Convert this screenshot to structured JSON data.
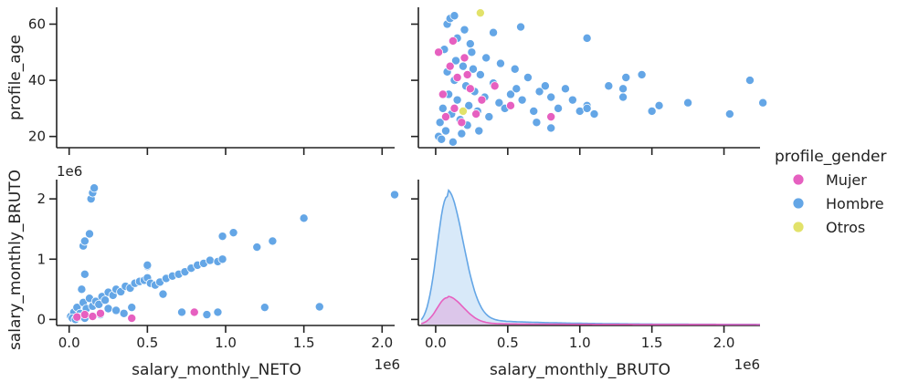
{
  "chart_data": {
    "type": "scatter",
    "title": "",
    "legend": {
      "title": "profile_gender",
      "placement": "right",
      "entries": [
        {
          "name": "Mujer",
          "color": "#e660c0"
        },
        {
          "name": "Hombre",
          "color": "#64a6e6"
        },
        {
          "name": "Otros",
          "color": "#e2e26a"
        }
      ]
    },
    "x_variables": [
      "salary_monthly_NETO",
      "salary_monthly_BRUTO"
    ],
    "y_variables": [
      "profile_age",
      "salary_monthly_BRUTO"
    ],
    "x_axes": [
      {
        "label": "salary_monthly_NETO",
        "offset_text": "1e6",
        "range": [
          -0.08,
          2.08
        ],
        "ticks": [
          0.0,
          0.5,
          1.0,
          1.5,
          2.0
        ],
        "tick_labels": [
          "0.0",
          "0.5",
          "1.0",
          "1.5",
          "2.0"
        ]
      },
      {
        "label": "salary_monthly_BRUTO",
        "offset_text": "1e6",
        "range": [
          -0.12,
          2.25
        ],
        "ticks": [
          0.0,
          0.5,
          1.0,
          1.5,
          2.0
        ],
        "tick_labels": [
          "0.0",
          "0.5",
          "1.0",
          "1.5",
          "2.0"
        ]
      }
    ],
    "y_axes": [
      {
        "label": "profile_age",
        "range": [
          16,
          66
        ],
        "ticks": [
          20,
          40,
          60
        ],
        "tick_labels": [
          "20",
          "40",
          "60"
        ]
      },
      {
        "label": "salary_monthly_BRUTO",
        "offset_text": "1e6",
        "range": [
          -0.1,
          2.32
        ],
        "ticks": [
          0,
          1,
          2
        ],
        "tick_labels": [
          "0",
          "1",
          "2"
        ]
      }
    ],
    "panels": {
      "age_vs_bruto": {
        "series": [
          {
            "name": "Hombre",
            "points": [
              [
                0.02,
                20
              ],
              [
                0.03,
                25
              ],
              [
                0.05,
                30
              ],
              [
                0.07,
                22
              ],
              [
                0.09,
                35
              ],
              [
                0.11,
                28
              ],
              [
                0.13,
                40
              ],
              [
                0.15,
                33
              ],
              [
                0.17,
                26
              ],
              [
                0.19,
                45
              ],
              [
                0.21,
                38
              ],
              [
                0.23,
                31
              ],
              [
                0.25,
                50
              ],
              [
                0.27,
                36
              ],
              [
                0.29,
                29
              ],
              [
                0.31,
                42
              ],
              [
                0.34,
                34
              ],
              [
                0.37,
                27
              ],
              [
                0.4,
                39
              ],
              [
                0.44,
                32
              ],
              [
                0.48,
                30
              ],
              [
                0.52,
                35
              ],
              [
                0.56,
                37
              ],
              [
                0.6,
                33
              ],
              [
                0.64,
                41
              ],
              [
                0.68,
                29
              ],
              [
                0.72,
                36
              ],
              [
                0.76,
                38
              ],
              [
                0.8,
                34
              ],
              [
                0.85,
                30
              ],
              [
                0.9,
                37
              ],
              [
                0.95,
                33
              ],
              [
                1.0,
                29
              ],
              [
                1.05,
                31
              ],
              [
                1.1,
                28
              ],
              [
                1.2,
                38
              ],
              [
                1.32,
                41
              ],
              [
                1.43,
                42
              ],
              [
                1.3,
                34
              ],
              [
                1.05,
                30
              ],
              [
                0.4,
                57
              ],
              [
                0.59,
                59
              ],
              [
                0.08,
                60
              ],
              [
                0.1,
                62
              ],
              [
                0.13,
                63
              ],
              [
                0.2,
                58
              ],
              [
                0.15,
                55
              ],
              [
                0.06,
                51
              ],
              [
                0.24,
                53
              ],
              [
                0.35,
                48
              ],
              [
                0.45,
                46
              ],
              [
                0.55,
                44
              ],
              [
                1.05,
                55
              ],
              [
                0.7,
                25
              ],
              [
                0.8,
                23
              ],
              [
                1.3,
                37
              ],
              [
                1.5,
                29
              ],
              [
                1.55,
                31
              ],
              [
                1.75,
                32
              ],
              [
                2.04,
                28
              ],
              [
                2.18,
                40
              ],
              [
                2.27,
                32
              ],
              [
                0.12,
                18
              ],
              [
                0.04,
                19
              ],
              [
                0.18,
                21
              ],
              [
                0.3,
                22
              ],
              [
                0.22,
                24
              ],
              [
                0.08,
                43
              ],
              [
                0.14,
                47
              ],
              [
                0.26,
                44
              ]
            ]
          },
          {
            "name": "Mujer",
            "points": [
              [
                0.02,
                50
              ],
              [
                0.05,
                35
              ],
              [
                0.07,
                27
              ],
              [
                0.1,
                45
              ],
              [
                0.13,
                30
              ],
              [
                0.15,
                41
              ],
              [
                0.18,
                25
              ],
              [
                0.2,
                48
              ],
              [
                0.24,
                37
              ],
              [
                0.28,
                28
              ],
              [
                0.32,
                33
              ],
              [
                0.41,
                38
              ],
              [
                0.52,
                31
              ],
              [
                0.8,
                27
              ],
              [
                0.12,
                54
              ],
              [
                0.22,
                42
              ]
            ]
          },
          {
            "name": "Otros",
            "points": [
              [
                0.31,
                64
              ],
              [
                0.19,
                29
              ]
            ]
          }
        ]
      },
      "bruto_vs_neto": {
        "series": [
          {
            "name": "Hombre",
            "points": [
              [
                0.01,
                0.05
              ],
              [
                0.03,
                0.12
              ],
              [
                0.05,
                0.2
              ],
              [
                0.07,
                0.1
              ],
              [
                0.09,
                0.28
              ],
              [
                0.11,
                0.18
              ],
              [
                0.13,
                0.35
              ],
              [
                0.15,
                0.22
              ],
              [
                0.17,
                0.3
              ],
              [
                0.19,
                0.25
              ],
              [
                0.21,
                0.38
              ],
              [
                0.23,
                0.32
              ],
              [
                0.25,
                0.45
              ],
              [
                0.28,
                0.4
              ],
              [
                0.3,
                0.5
              ],
              [
                0.33,
                0.46
              ],
              [
                0.36,
                0.55
              ],
              [
                0.39,
                0.52
              ],
              [
                0.42,
                0.6
              ],
              [
                0.45,
                0.63
              ],
              [
                0.48,
                0.65
              ],
              [
                0.5,
                0.69
              ],
              [
                0.52,
                0.6
              ],
              [
                0.55,
                0.57
              ],
              [
                0.58,
                0.62
              ],
              [
                0.62,
                0.68
              ],
              [
                0.66,
                0.72
              ],
              [
                0.7,
                0.75
              ],
              [
                0.74,
                0.79
              ],
              [
                0.78,
                0.85
              ],
              [
                0.82,
                0.9
              ],
              [
                0.86,
                0.93
              ],
              [
                0.9,
                0.98
              ],
              [
                0.95,
                0.96
              ],
              [
                0.98,
                1.0
              ],
              [
                0.98,
                1.38
              ],
              [
                1.05,
                1.44
              ],
              [
                1.2,
                1.2
              ],
              [
                1.3,
                1.3
              ],
              [
                1.5,
                1.68
              ],
              [
                2.08,
                2.07
              ],
              [
                0.08,
                0.5
              ],
              [
                0.1,
                0.75
              ],
              [
                0.09,
                1.22
              ],
              [
                0.1,
                1.3
              ],
              [
                0.13,
                1.42
              ],
              [
                0.14,
                2.0
              ],
              [
                0.15,
                2.1
              ],
              [
                0.16,
                2.18
              ],
              [
                0.25,
                0.18
              ],
              [
                0.4,
                0.2
              ],
              [
                0.5,
                0.88
              ],
              [
                0.5,
                0.9
              ],
              [
                0.6,
                0.42
              ],
              [
                0.72,
                0.12
              ],
              [
                0.95,
                0.12
              ],
              [
                0.88,
                0.08
              ],
              [
                1.25,
                0.2
              ],
              [
                1.6,
                0.21
              ],
              [
                0.02,
                0.02
              ],
              [
                0.04,
                0.0
              ],
              [
                0.06,
                0.04
              ],
              [
                0.2,
                0.08
              ],
              [
                0.3,
                0.15
              ],
              [
                0.35,
                0.1
              ],
              [
                0.1,
                0.02
              ],
              [
                0.15,
                0.06
              ]
            ]
          },
          {
            "name": "Mujer",
            "points": [
              [
                0.4,
                0.02
              ],
              [
                0.8,
                0.12
              ],
              [
                0.05,
                0.04
              ],
              [
                0.1,
                0.08
              ],
              [
                0.15,
                0.05
              ],
              [
                0.2,
                0.1
              ]
            ]
          }
        ]
      },
      "bruto_kde": {
        "series": [
          {
            "name": "Hombre",
            "peak_x": 0.08,
            "peak_density": 1.0
          },
          {
            "name": "Mujer",
            "peak_x": 0.08,
            "peak_density": 0.21
          }
        ]
      }
    }
  }
}
